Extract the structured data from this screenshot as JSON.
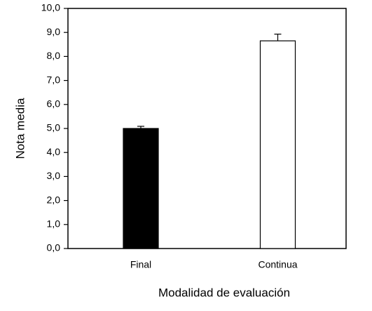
{
  "chart_data": {
    "type": "bar",
    "xlabel": "Modalidad de evaluación",
    "ylabel": "Nota media",
    "categories": [
      "Final",
      "Continua"
    ],
    "values": [
      5.0,
      8.65
    ],
    "errors": [
      0.09,
      0.28
    ],
    "colors": [
      "#000000",
      "#ffffff"
    ],
    "ylim": [
      0,
      10
    ],
    "yticks": [
      {
        "value": 0,
        "label": "0,0"
      },
      {
        "value": 1,
        "label": "1,0"
      },
      {
        "value": 2,
        "label": "2,0"
      },
      {
        "value": 3,
        "label": "3,0"
      },
      {
        "value": 4,
        "label": "4,0"
      },
      {
        "value": 5,
        "label": "5,0"
      },
      {
        "value": 6,
        "label": "6,0"
      },
      {
        "value": 7,
        "label": "7,0"
      },
      {
        "value": 8,
        "label": "8,0"
      },
      {
        "value": 9,
        "label": "9,0"
      },
      {
        "value": 10,
        "label": "10,0"
      }
    ],
    "grid": false
  }
}
